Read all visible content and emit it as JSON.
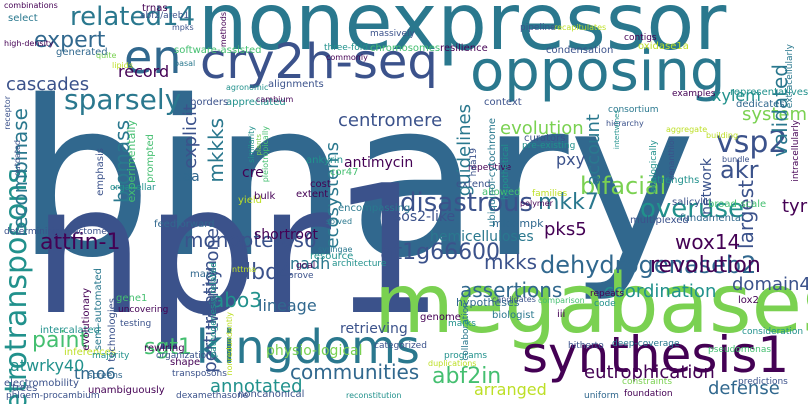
{
  "palette": {
    "background": "#ffffff",
    "dark_purple": "#440154",
    "indigo": "#3b528b",
    "blue": "#31688e",
    "teal_blue": "#2a788e",
    "teal": "#21918c",
    "green_teal": "#22a884",
    "green": "#44bf70",
    "light_green": "#7ad151",
    "yellow_green": "#bddf26",
    "yellow": "#fde725"
  },
  "words": [
    {
      "text": "binary",
      "color": "#31688e"
    },
    {
      "text": "npr1",
      "color": "#3b528b"
    },
    {
      "text": "nonexpressor",
      "color": "#2a788e"
    },
    {
      "text": "megabases",
      "color": "#7ad151"
    },
    {
      "text": "kingdoms",
      "color": "#2a788e"
    },
    {
      "text": "synthesis1",
      "color": "#440154"
    },
    {
      "text": "opposing",
      "color": "#2a788e"
    },
    {
      "text": "cry2h-seq",
      "color": "#3b528b"
    },
    {
      "text": "en",
      "color": "#31688e"
    },
    {
      "text": "retrotransposons",
      "color": "#21918c"
    },
    {
      "text": "monopteros6",
      "color": "#3b528b"
    },
    {
      "text": "attfin-1",
      "color": "#440154"
    },
    {
      "text": "sparsely",
      "color": "#2a788e"
    },
    {
      "text": "related14",
      "color": "#2a788e"
    },
    {
      "text": "expert",
      "color": "#31688e"
    },
    {
      "text": "disastrous",
      "color": "#3b528b"
    },
    {
      "text": "dehydrogenaseb2",
      "color": "#31688e"
    },
    {
      "text": "at1g66600",
      "color": "#3b528b"
    },
    {
      "text": "overuse",
      "color": "#21918c"
    },
    {
      "text": "wox14",
      "color": "#440154"
    },
    {
      "text": "vsp2",
      "color": "#3b528b"
    },
    {
      "text": "akr",
      "color": "#3b528b"
    },
    {
      "text": "bifacial",
      "color": "#7ad151"
    },
    {
      "text": "mkk7",
      "color": "#2a788e"
    },
    {
      "text": "revolution",
      "color": "#440154"
    },
    {
      "text": "abf2in",
      "color": "#44bf70"
    },
    {
      "text": "lbd4",
      "color": "#3b528b"
    },
    {
      "text": "abo3",
      "color": "#21918c"
    },
    {
      "text": "sgt1",
      "color": "#44bf70"
    },
    {
      "text": "paint",
      "color": "#44bf70"
    },
    {
      "text": "communities",
      "color": "#31688e"
    },
    {
      "text": "annotated",
      "color": "#21918c"
    },
    {
      "text": "mkks",
      "color": "#3b528b"
    },
    {
      "text": "assertions",
      "color": "#31688e"
    },
    {
      "text": "coordination",
      "color": "#21918c"
    },
    {
      "text": "domain4",
      "color": "#3b528b"
    },
    {
      "text": "largest",
      "color": "#3b528b"
    },
    {
      "text": "eutrophication",
      "color": "#440154"
    },
    {
      "text": "defense",
      "color": "#31688e"
    },
    {
      "text": "arranged",
      "color": "#bddf26"
    },
    {
      "text": "tmo6",
      "color": "#31688e"
    },
    {
      "text": "atwrky40",
      "color": "#21918c"
    },
    {
      "text": "evolution",
      "color": "#7ad151"
    },
    {
      "text": "centromere",
      "color": "#3b528b"
    },
    {
      "text": "systems",
      "color": "#7ad151"
    },
    {
      "text": "xylem",
      "color": "#21918c"
    },
    {
      "text": "validated",
      "color": "#2a788e"
    },
    {
      "text": "tyr",
      "color": "#440154"
    },
    {
      "text": "cascades",
      "color": "#3b528b"
    },
    {
      "text": "record",
      "color": "#440154"
    },
    {
      "text": "recombinase",
      "color": "#2a788e"
    },
    {
      "text": "biomass",
      "color": "#2a788e"
    },
    {
      "text": "mkkks",
      "color": "#2a788e"
    },
    {
      "text": "explicit",
      "color": "#3b528b"
    },
    {
      "text": "ecosystems",
      "color": "#2a788e"
    },
    {
      "text": "guidelines",
      "color": "#2a788e"
    },
    {
      "text": "pks5",
      "color": "#440154"
    },
    {
      "text": "pxy",
      "color": "#3b528b"
    },
    {
      "text": "account",
      "color": "#2a788e"
    },
    {
      "text": "network",
      "color": "#3b528b"
    },
    {
      "text": "antimycin",
      "color": "#440154"
    },
    {
      "text": "cre",
      "color": "#440154"
    },
    {
      "text": "aaa",
      "color": "#31688e"
    },
    {
      "text": "perturbation",
      "color": "#3b528b"
    },
    {
      "text": "twenty-one",
      "color": "#3b528b"
    },
    {
      "text": "lineage",
      "color": "#31688e"
    },
    {
      "text": "physio-logical",
      "color": "#7ad151"
    },
    {
      "text": "sos2-like",
      "color": "#3b528b"
    },
    {
      "text": "hemicelluloses",
      "color": "#2a788e"
    },
    {
      "text": "shortroot",
      "color": "#440154"
    },
    {
      "text": "nadh",
      "color": "#2a788e"
    },
    {
      "text": "retrieving",
      "color": "#3b528b"
    },
    {
      "text": "intercalated",
      "color": "#21918c"
    },
    {
      "text": "inferences",
      "color": "#bddf26"
    },
    {
      "text": "electromobility",
      "color": "#3b528b"
    },
    {
      "text": "trees",
      "color": "#3b528b"
    },
    {
      "text": "phloem-procambium",
      "color": "#3b528b"
    },
    {
      "text": "unambiguously",
      "color": "#440154"
    },
    {
      "text": "dexamethasone",
      "color": "#3b528b"
    },
    {
      "text": "noncanonical",
      "color": "#3b528b"
    },
    {
      "text": "reconstitution",
      "color": "#21918c"
    },
    {
      "text": "uniform",
      "color": "#31688e"
    },
    {
      "text": "foundation",
      "color": "#440154"
    },
    {
      "text": "constraints",
      "color": "#7ad151"
    },
    {
      "text": "predictions",
      "color": "#3b528b"
    },
    {
      "text": "pseudomonas",
      "color": "#44bf70"
    },
    {
      "text": "deep-coverage",
      "color": "#2a788e"
    },
    {
      "text": "hitherto",
      "color": "#3b528b"
    },
    {
      "text": "programs",
      "color": "#21918c"
    },
    {
      "text": "duplications",
      "color": "#bddf26"
    },
    {
      "text": "categorized",
      "color": "#3b528b"
    },
    {
      "text": "genome",
      "color": "#440154"
    },
    {
      "text": "collaboration",
      "color": "#2a788e"
    },
    {
      "text": "hypotheses",
      "color": "#31688e"
    },
    {
      "text": "biologist",
      "color": "#2a788e"
    },
    {
      "text": "marks",
      "color": "#21918c"
    },
    {
      "text": "iii",
      "color": "#440154"
    },
    {
      "text": "code",
      "color": "#21918c"
    },
    {
      "text": "consideration",
      "color": "#21918c"
    },
    {
      "text": "lox2",
      "color": "#440154"
    },
    {
      "text": "repeats",
      "color": "#440154"
    },
    {
      "text": "candidates",
      "color": "#3b528b"
    },
    {
      "text": "comparison",
      "color": "#44bf70"
    },
    {
      "text": "fundamental",
      "color": "#31688e"
    },
    {
      "text": "salicylic",
      "color": "#3b528b"
    },
    {
      "text": "strengths",
      "color": "#21918c"
    },
    {
      "text": "broad-scale",
      "color": "#44bf70"
    },
    {
      "text": "multiplexed",
      "color": "#3b528b"
    },
    {
      "text": "mkk-mpk",
      "color": "#31688e"
    },
    {
      "text": "polymer",
      "color": "#440154"
    },
    {
      "text": "allowed",
      "color": "#44bf70"
    },
    {
      "text": "extend",
      "color": "#3b528b"
    },
    {
      "text": "families",
      "color": "#bddf26"
    },
    {
      "text": "repetitive",
      "color": "#440154"
    },
    {
      "text": "cost",
      "color": "#440154"
    },
    {
      "text": "extent",
      "color": "#440154"
    },
    {
      "text": "encompassing",
      "color": "#2a788e"
    },
    {
      "text": "cor47",
      "color": "#44bf70"
    },
    {
      "text": "ankyrin",
      "color": "#21918c"
    },
    {
      "text": "yield",
      "color": "#bddf26"
    },
    {
      "text": "bulk",
      "color": "#440154"
    },
    {
      "text": "feedforward",
      "color": "#31688e"
    },
    {
      "text": "determining",
      "color": "#3b528b"
    },
    {
      "text": "interactome",
      "color": "#3b528b"
    },
    {
      "text": "organellar",
      "color": "#21918c"
    },
    {
      "text": "syringae",
      "color": "#2a788e"
    },
    {
      "text": "resource",
      "color": "#21918c"
    },
    {
      "text": "architecture",
      "color": "#21918c"
    },
    {
      "text": "goal",
      "color": "#440154"
    },
    {
      "text": "prove",
      "color": "#3b528b"
    },
    {
      "text": "map",
      "color": "#31688e"
    },
    {
      "text": "gene1",
      "color": "#44bf70"
    },
    {
      "text": "uncovering",
      "color": "#440154"
    },
    {
      "text": "testing",
      "color": "#3b528b"
    },
    {
      "text": "semi-automated",
      "color": "#2a788e"
    },
    {
      "text": "evolutionary",
      "color": "#440154"
    },
    {
      "text": "technologies",
      "color": "#3b528b"
    },
    {
      "text": "rewiring",
      "color": "#440154"
    },
    {
      "text": "organization",
      "color": "#3b528b"
    },
    {
      "text": "majority",
      "color": "#21918c"
    },
    {
      "text": "screens",
      "color": "#31688e"
    },
    {
      "text": "shape",
      "color": "#440154"
    },
    {
      "text": "transposons",
      "color": "#3b528b"
    },
    {
      "text": "pathogenesis-related",
      "color": "#21918c"
    },
    {
      "text": "nttma",
      "color": "#bddf26"
    },
    {
      "text": "emphasis",
      "color": "#3b528b"
    },
    {
      "text": "experimentally",
      "color": "#44bf70"
    },
    {
      "text": "prompted",
      "color": "#44bf70"
    },
    {
      "text": "appreciated",
      "color": "#21918c"
    },
    {
      "text": "borders",
      "color": "#3b528b"
    },
    {
      "text": "agronomic",
      "color": "#21918c"
    },
    {
      "text": "alignments",
      "color": "#3b528b"
    },
    {
      "text": "cambium",
      "color": "#440154"
    },
    {
      "text": "software-assisted",
      "color": "#44bf70"
    },
    {
      "text": "basal",
      "color": "#2a788e"
    },
    {
      "text": "three-fold",
      "color": "#21918c"
    },
    {
      "text": "commonly",
      "color": "#440154"
    },
    {
      "text": "chromosomes",
      "color": "#44bf70"
    },
    {
      "text": "resilience",
      "color": "#440154"
    },
    {
      "text": "condensation",
      "color": "#3b528b"
    },
    {
      "text": "oxidase1a",
      "color": "#bddf26"
    },
    {
      "text": "contigs",
      "color": "#440154"
    },
    {
      "text": "recapitulates",
      "color": "#bddf26"
    },
    {
      "text": "pipeline",
      "color": "#3b528b"
    },
    {
      "text": "massively",
      "color": "#3b528b"
    },
    {
      "text": "methods",
      "color": "#440154"
    },
    {
      "text": "abf2/areb1",
      "color": "#3b528b"
    },
    {
      "text": "trnas",
      "color": "#440154"
    },
    {
      "text": "mpks",
      "color": "#3b528b"
    },
    {
      "text": "generated",
      "color": "#31688e"
    },
    {
      "text": "combinations",
      "color": "#440154"
    },
    {
      "text": "high-density",
      "color": "#440154"
    },
    {
      "text": "select",
      "color": "#2a788e"
    },
    {
      "text": "quite",
      "color": "#7ad151"
    },
    {
      "text": "lipids",
      "color": "#bddf26"
    },
    {
      "text": "extracellularly",
      "color": "#2a788e"
    },
    {
      "text": "intracellularly",
      "color": "#440154"
    },
    {
      "text": "representatives",
      "color": "#21918c"
    },
    {
      "text": "dedicates",
      "color": "#31688e"
    },
    {
      "text": "examples",
      "color": "#440154"
    },
    {
      "text": "consortium",
      "color": "#2a788e"
    },
    {
      "text": "hierarchy",
      "color": "#3b528b"
    },
    {
      "text": "intertwines",
      "color": "#21918c"
    },
    {
      "text": "curators",
      "color": "#3b528b"
    },
    {
      "text": "pre-existing",
      "color": "#21918c"
    },
    {
      "text": "context",
      "color": "#3b528b"
    },
    {
      "text": "ubiquinol-cytochrome",
      "color": "#2a788e"
    },
    {
      "text": "hypothetical",
      "color": "#21918c"
    },
    {
      "text": "hda19",
      "color": "#3b528b"
    },
    {
      "text": "ecologically",
      "color": "#21918c"
    },
    {
      "text": "zenanthiol",
      "color": "#3b528b"
    },
    {
      "text": "building",
      "color": "#bddf26"
    },
    {
      "text": "aggregate",
      "color": "#bddf26"
    },
    {
      "text": "bundle",
      "color": "#3b528b"
    },
    {
      "text": "similarity",
      "color": "#21918c"
    },
    {
      "text": "plants",
      "color": "#7ad151"
    },
    {
      "text": "pleiotropically",
      "color": "#44bf70"
    },
    {
      "text": "receptor",
      "color": "#3b528b"
    },
    {
      "text": "outdated",
      "color": "#3b528b"
    },
    {
      "text": "nonredundantly",
      "color": "#bddf26"
    },
    {
      "text": "solved",
      "color": "#2a788e"
    }
  ]
}
